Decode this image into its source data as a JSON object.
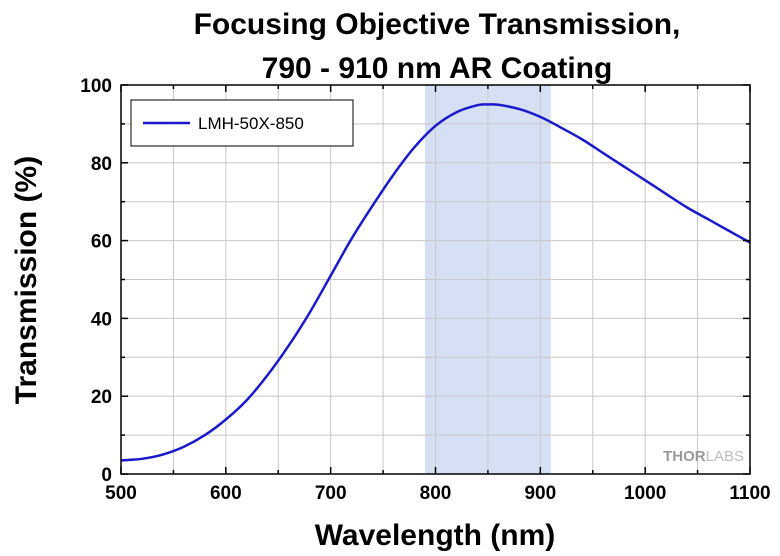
{
  "chart_data": {
    "type": "line",
    "title_line1": "Focusing Objective Transmission,",
    "title_line2": "790 - 910 nm AR Coating",
    "xlabel": "Wavelength (nm)",
    "ylabel": "Transmission (%)",
    "xlim": [
      500,
      1100
    ],
    "ylim": [
      0,
      100
    ],
    "xticks": [
      500,
      600,
      700,
      800,
      900,
      1000,
      1100
    ],
    "yticks": [
      0,
      20,
      40,
      60,
      80,
      100
    ],
    "grid": true,
    "legend_position": "top-left",
    "shaded_band": {
      "x_start": 790,
      "x_end": 910,
      "color": "#d6e0f5"
    },
    "series": [
      {
        "name": "LMH-50X-850",
        "color": "#1a1acc",
        "x": [
          500,
          520,
          540,
          560,
          580,
          600,
          620,
          640,
          660,
          680,
          700,
          720,
          740,
          760,
          780,
          800,
          820,
          840,
          850,
          860,
          880,
          900,
          920,
          940,
          960,
          980,
          1000,
          1020,
          1040,
          1060,
          1080,
          1100
        ],
        "y": [
          3.5,
          3.9,
          5.0,
          7.0,
          10.0,
          14.0,
          19.0,
          25.5,
          33.0,
          41.5,
          51.0,
          60.5,
          69.0,
          77.0,
          84.0,
          89.5,
          93.0,
          94.8,
          95.0,
          94.9,
          93.8,
          91.8,
          89.0,
          86.0,
          82.5,
          79.0,
          75.5,
          72.0,
          68.5,
          65.5,
          62.5,
          59.5
        ]
      }
    ]
  },
  "watermark": {
    "part1": "THOR",
    "part2": "LABS"
  }
}
